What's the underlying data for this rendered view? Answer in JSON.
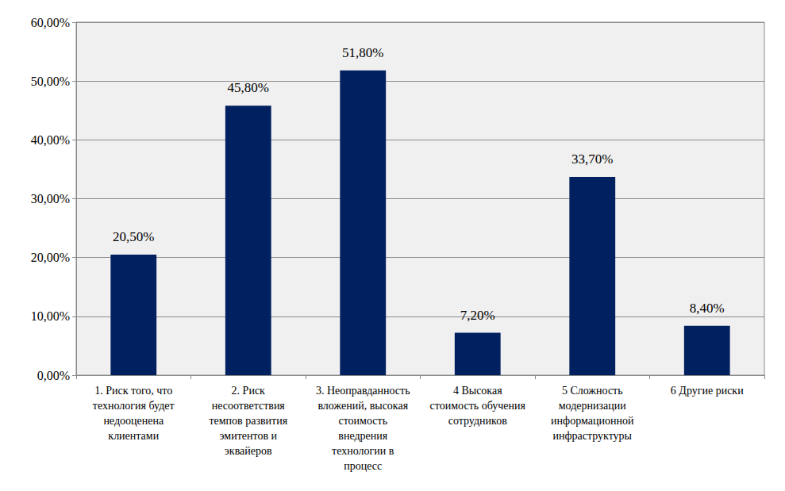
{
  "chart_data": {
    "type": "bar",
    "categories": [
      "1. Риск того, что\nтехнология будет\nнедооценена\nклиентами",
      "2. Риск\nнесоответствия\nтемпов развития\nэмитентов и\nэквайеров",
      "3. Неоправданность\nвложений, высокая\nстоимость\nвнедрения\nтехнологии в\nпроцесс",
      "4 Высокая\nстоимость обучения\nсотрудников",
      "5 Сложность\nмодернизации\nинформационной\nинфраструктуры",
      "6 Другие риски"
    ],
    "values": [
      20.5,
      45.8,
      51.8,
      7.2,
      33.7,
      8.4
    ],
    "value_labels": [
      "20,50%",
      "45,80%",
      "51,80%",
      "7,20%",
      "33,70%",
      "8,40%"
    ],
    "color": "#002060",
    "ylim": [
      0,
      60
    ],
    "yticks": [
      {
        "value": 0,
        "label": "0,00%"
      },
      {
        "value": 10,
        "label": "10,00%"
      },
      {
        "value": 20,
        "label": "20,00%"
      },
      {
        "value": 30,
        "label": "30,00%"
      },
      {
        "value": 40,
        "label": "40,00%"
      },
      {
        "value": 50,
        "label": "50,00%"
      },
      {
        "value": 60,
        "label": "60,00%"
      }
    ],
    "grid": true,
    "data_labels": true
  }
}
